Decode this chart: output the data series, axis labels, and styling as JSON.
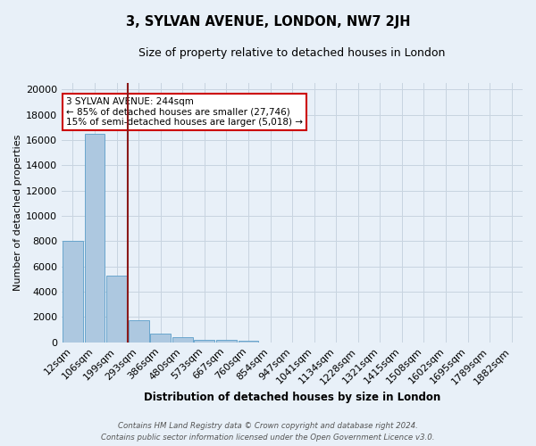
{
  "title": "3, SYLVAN AVENUE, LONDON, NW7 2JH",
  "subtitle": "Size of property relative to detached houses in London",
  "xlabel": "Distribution of detached houses by size in London",
  "ylabel": "Number of detached properties",
  "footer_line1": "Contains HM Land Registry data © Crown copyright and database right 2024.",
  "footer_line2": "Contains public sector information licensed under the Open Government Licence v3.0.",
  "bin_labels": [
    "12sqm",
    "106sqm",
    "199sqm",
    "293sqm",
    "386sqm",
    "480sqm",
    "573sqm",
    "667sqm",
    "760sqm",
    "854sqm",
    "947sqm",
    "1041sqm",
    "1134sqm",
    "1228sqm",
    "1321sqm",
    "1415sqm",
    "1508sqm",
    "1602sqm",
    "1695sqm",
    "1789sqm",
    "1882sqm"
  ],
  "bar_heights": [
    8050,
    16500,
    5300,
    1750,
    700,
    380,
    220,
    170,
    130,
    0,
    0,
    0,
    0,
    0,
    0,
    0,
    0,
    0,
    0,
    0,
    0
  ],
  "bar_color": "#adc8e0",
  "bar_edge_color": "#5a9ec9",
  "background_color": "#e8f0f8",
  "grid_color": "#c8d4e0",
  "vline_x_index": 2,
  "vline_color": "#8b1a1a",
  "annotation_line1": "3 SYLVAN AVENUE: 244sqm",
  "annotation_line2": "← 85% of detached houses are smaller (27,746)",
  "annotation_line3": "15% of semi-detached houses are larger (5,018) →",
  "annotation_box_color": "#ffffff",
  "annotation_box_edge": "#cc0000",
  "ylim": [
    0,
    20500
  ],
  "yticks": [
    0,
    2000,
    4000,
    6000,
    8000,
    10000,
    12000,
    14000,
    16000,
    18000,
    20000
  ]
}
